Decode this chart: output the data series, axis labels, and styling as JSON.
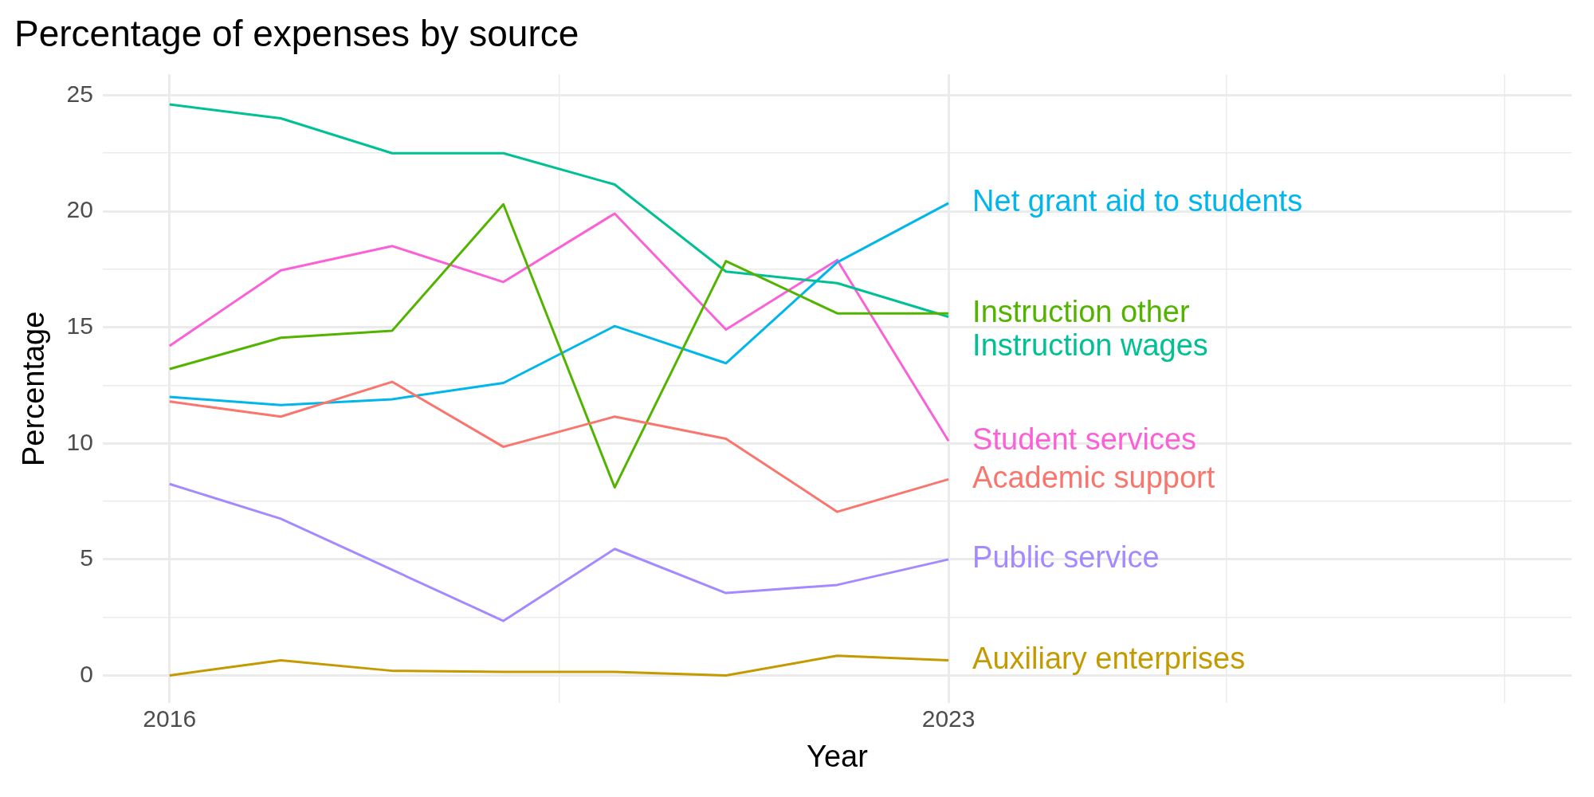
{
  "chart_data": {
    "type": "line",
    "title": "Percentage of expenses by source",
    "xlabel": "Year",
    "ylabel": "Percentage",
    "x": [
      2016,
      2017,
      2018,
      2019,
      2020,
      2021,
      2022,
      2023
    ],
    "xlim": [
      2015.4,
      2028.6
    ],
    "xticks": [
      2016,
      {
        "value": 2019.5,
        "label": null
      },
      2023,
      {
        "value": 2025.5,
        "label": null
      },
      {
        "value": 2028,
        "label": null
      }
    ],
    "ylim": [
      -1.2,
      25.9
    ],
    "yticks": [
      0,
      {
        "value": 2.5,
        "label": null
      },
      5,
      {
        "value": 7.5,
        "label": null
      },
      10,
      {
        "value": 12.5,
        "label": null
      },
      15,
      {
        "value": 17.5,
        "label": null
      },
      20,
      {
        "value": 22.5,
        "label": null
      },
      25
    ],
    "grid": true,
    "legend": false,
    "marker": "none",
    "line_style": "solid",
    "series": [
      {
        "name": "Academic support",
        "color": "#f8766d",
        "values": [
          11.8,
          11.15,
          12.65,
          9.85,
          11.15,
          10.2,
          7.05,
          8.45
        ]
      },
      {
        "name": "Auxiliary enterprises",
        "color": "#c49a00",
        "values": [
          0,
          0.65,
          0.2,
          0.15,
          0.15,
          0,
          0.85,
          0.65
        ]
      },
      {
        "name": "Instruction other",
        "color": "#53b400",
        "values": [
          13.2,
          14.55,
          14.85,
          20.3,
          8.1,
          17.85,
          15.6,
          15.6
        ]
      },
      {
        "name": "Instruction wages",
        "color": "#00c094",
        "values": [
          24.6,
          24.0,
          22.5,
          22.5,
          21.15,
          17.4,
          16.9,
          15.45
        ]
      },
      {
        "name": "Net grant aid to students",
        "color": "#00b6eb",
        "values": [
          12.0,
          11.65,
          11.9,
          12.6,
          15.05,
          13.45,
          17.8,
          20.35
        ]
      },
      {
        "name": "Public service",
        "color": "#a58aff",
        "values": [
          8.25,
          6.75,
          4.55,
          2.35,
          5.45,
          3.55,
          3.9,
          5.0
        ]
      },
      {
        "name": "Student services",
        "color": "#fb61d7",
        "values": [
          14.2,
          17.45,
          18.5,
          16.95,
          19.9,
          14.9,
          17.9,
          10.1
        ]
      }
    ]
  }
}
